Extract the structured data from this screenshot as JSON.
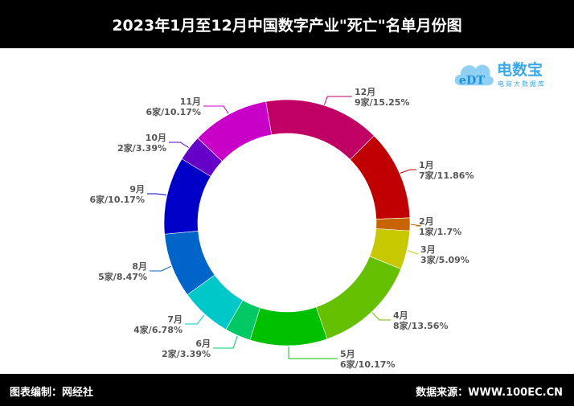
{
  "header": {
    "title": "2023年1月至12月中国数字产业\"死亡\"名单月份图"
  },
  "footer": {
    "left": "图表编制：网经社",
    "right": "数据来源：WWW.100EC.CN"
  },
  "logo": {
    "name": "电数宝",
    "sub": "电商大数据库",
    "mark": "eDT"
  },
  "chart_data": {
    "type": "pie",
    "variant": "donut",
    "title": "",
    "start": "1月 at upper-right, clockwise",
    "categories": [
      "1月",
      "2月",
      "3月",
      "4月",
      "5月",
      "6月",
      "7月",
      "8月",
      "9月",
      "10月",
      "11月",
      "12月"
    ],
    "values": [
      7,
      1,
      3,
      8,
      6,
      2,
      4,
      5,
      6,
      2,
      6,
      9
    ],
    "labels": [
      "7家/11.86%",
      "1家/1.7%",
      "3家/5.09%",
      "8家/13.56%",
      "6家/10.17%",
      "2家/3.39%",
      "4家/6.78%",
      "5家/8.47%",
      "6家/10.17%",
      "2家/3.39%",
      "6家/10.17%",
      "9家/15.25%"
    ],
    "percents": [
      11.86,
      1.7,
      5.09,
      13.56,
      10.17,
      3.39,
      6.78,
      8.47,
      10.17,
      3.39,
      10.17,
      15.25
    ],
    "colors": [
      "#c00000",
      "#c86400",
      "#c8c800",
      "#64c000",
      "#00c000",
      "#00c864",
      "#00c8c8",
      "#0064c8",
      "#0000c8",
      "#6400c8",
      "#c800c8",
      "#c00064"
    ]
  }
}
